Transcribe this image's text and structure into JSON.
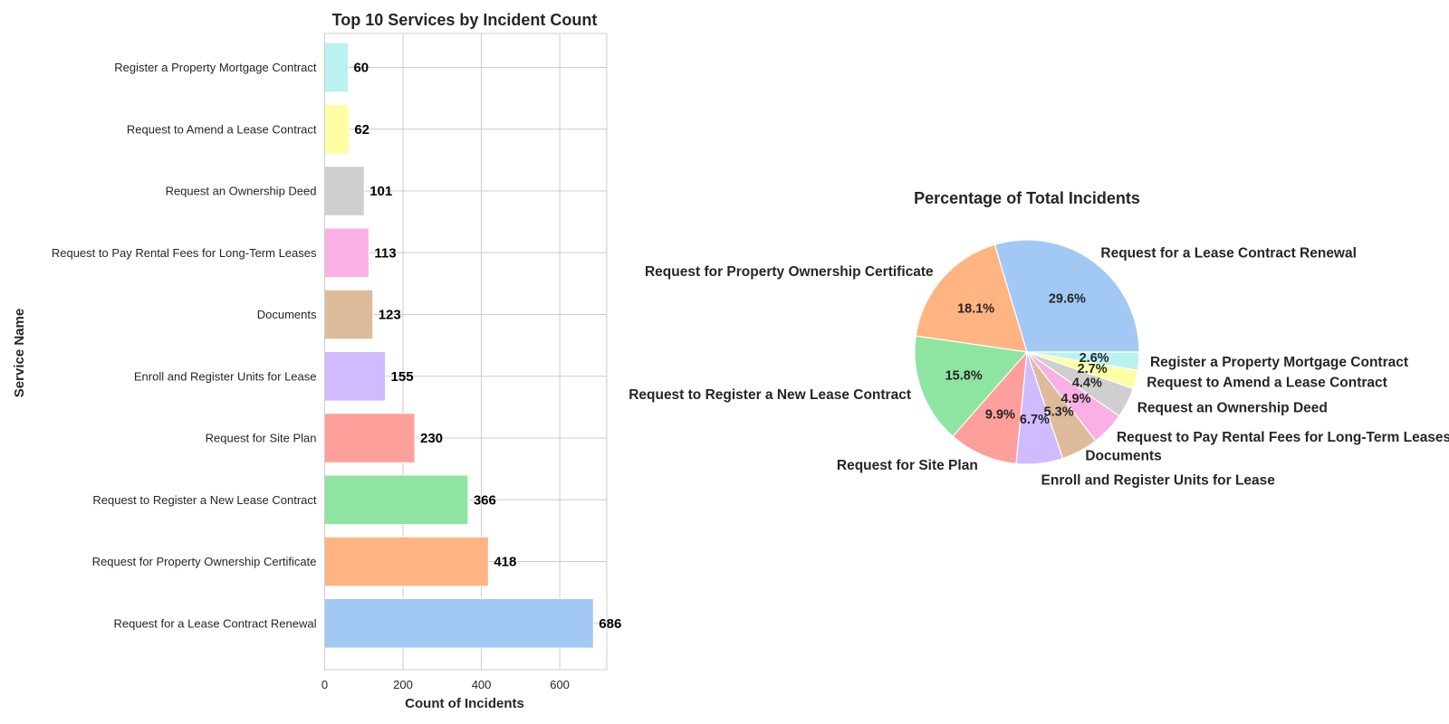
{
  "chart_data": [
    {
      "type": "bar",
      "orientation": "horizontal",
      "title": "Top 10 Services by Incident Count",
      "xlabel": "Count of Incidents",
      "ylabel": "Service Name",
      "categories": [
        "Request for a Lease Contract Renewal",
        "Request for Property Ownership Certificate",
        "Request to Register a New Lease Contract",
        "Request for Site Plan",
        "Enroll and Register Units for Lease",
        "Documents",
        "Request to Pay Rental Fees for Long-Term Leases",
        "Request an Ownership Deed",
        "Request to Amend a Lease Contract",
        "Register a Property Mortgage Contract"
      ],
      "values": [
        686,
        418,
        366,
        230,
        155,
        123,
        113,
        101,
        62,
        60
      ],
      "xlim": [
        0,
        720
      ],
      "xticks": [
        0,
        200,
        400,
        600
      ],
      "grid": true,
      "colors": [
        "#a1c9f4",
        "#ffb482",
        "#8de5a1",
        "#ff9f9b",
        "#d0bbff",
        "#debb9b",
        "#fab0e4",
        "#cfcfcf",
        "#fffea3",
        "#b9f2f0"
      ]
    },
    {
      "type": "pie",
      "title": "Percentage of Total Incidents",
      "labels": [
        "Request for a Lease Contract Renewal",
        "Request for Property Ownership Certificate",
        "Request to Register a New Lease Contract",
        "Request for Site Plan",
        "Enroll and Register Units for Lease",
        "Documents",
        "Request to Pay Rental Fees for Long-Term Leases",
        "Request an Ownership Deed",
        "Request to Amend a Lease Contract",
        "Register a Property Mortgage Contract"
      ],
      "values": [
        686,
        418,
        366,
        230,
        155,
        123,
        113,
        101,
        62,
        60
      ],
      "percent_labels": [
        "29.6%",
        "18.1%",
        "15.8%",
        "9.9%",
        "6.7%",
        "5.3%",
        "4.9%",
        "4.4%",
        "2.7%",
        "2.6%"
      ],
      "colors": [
        "#a1c9f4",
        "#ffb482",
        "#8de5a1",
        "#ff9f9b",
        "#d0bbff",
        "#debb9b",
        "#fab0e4",
        "#cfcfcf",
        "#fffea3",
        "#b9f2f0"
      ]
    }
  ]
}
